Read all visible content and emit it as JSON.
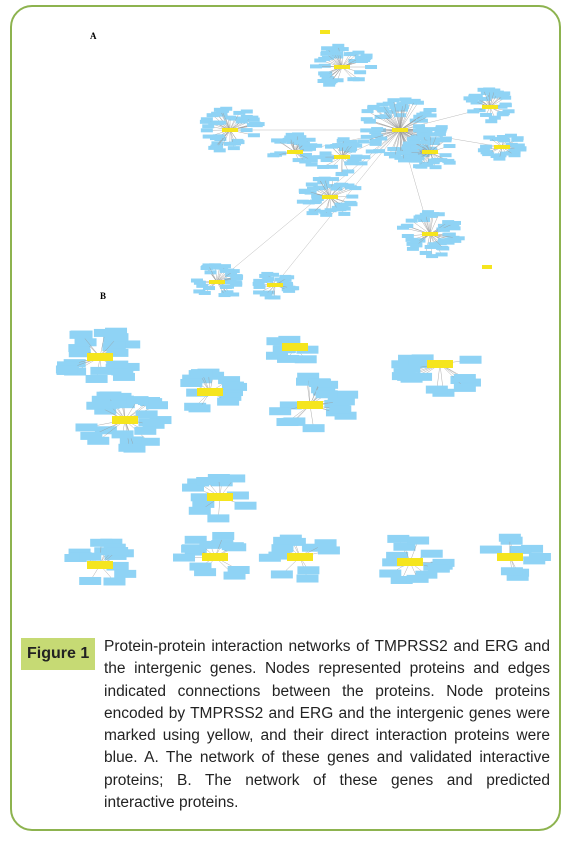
{
  "figure": {
    "panel_a_label": "A",
    "panel_b_label": "B"
  },
  "caption": {
    "label": "Figure 1",
    "text": "Protein-protein interaction networks of TMPRSS2 and ERG and the intergenic genes. Nodes represented proteins and edges indicated connections between the proteins. Node proteins encoded by TMPRSS2 and ERG and the intergenic genes were marked using yellow, and their direct interaction proteins were blue. A. The network of these genes and validated interactive proteins; B. The network of these genes and predicted interactive proteins."
  }
}
